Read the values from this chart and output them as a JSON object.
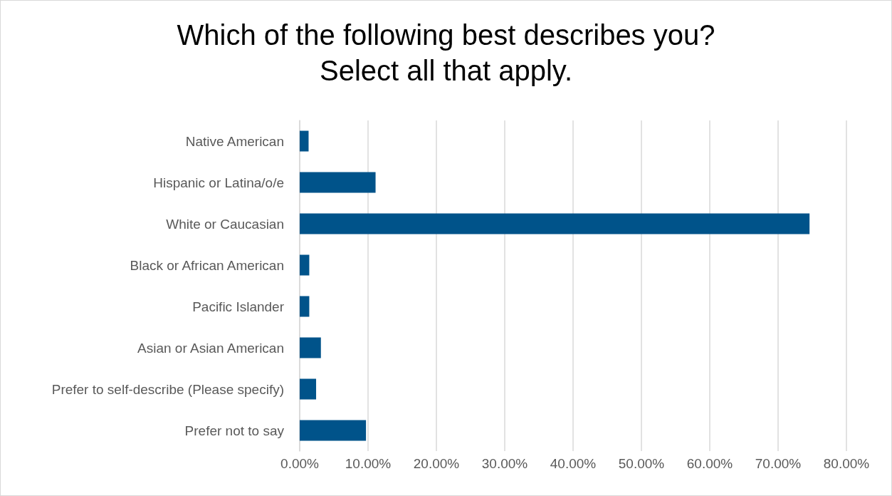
{
  "chart_data": {
    "type": "bar",
    "orientation": "horizontal",
    "title": "Which of the following best describes you?\nSelect all that apply.",
    "categories": [
      "Native American",
      "Hispanic or Latina/o/e",
      "White or Caucasian",
      "Black or African American",
      "Pacific Islander",
      "Asian or Asian American",
      "Prefer to self-describe (Please specify)",
      "Prefer not to say"
    ],
    "values": [
      1.3,
      11.1,
      74.6,
      1.4,
      1.4,
      3.1,
      2.4,
      9.7
    ],
    "color": "#00538a",
    "xlim": [
      0,
      80
    ],
    "xticks": [
      {
        "value": 0,
        "label": "0.00%"
      },
      {
        "value": 10,
        "label": "10.00%"
      },
      {
        "value": 20,
        "label": "20.00%"
      },
      {
        "value": 30,
        "label": "30.00%"
      },
      {
        "value": 40,
        "label": "40.00%"
      },
      {
        "value": 50,
        "label": "50.00%"
      },
      {
        "value": 60,
        "label": "60.00%"
      },
      {
        "value": 70,
        "label": "70.00%"
      },
      {
        "value": 80,
        "label": "80.00%"
      }
    ],
    "grid": "x"
  }
}
